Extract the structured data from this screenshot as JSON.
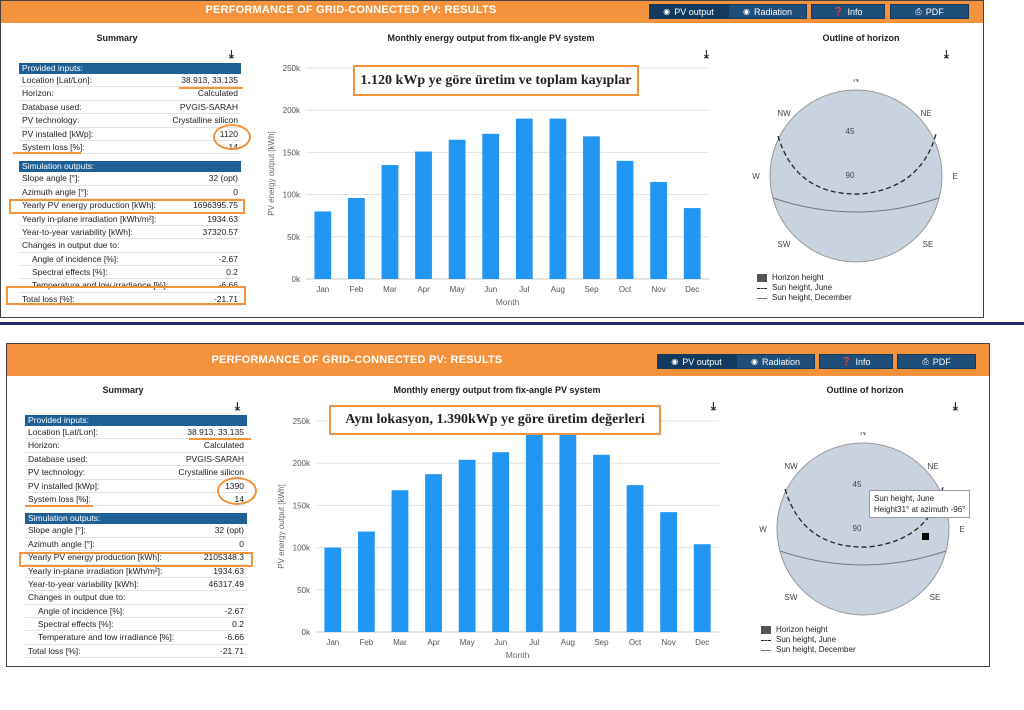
{
  "panel1": {
    "title": "PERFORMANCE OF GRID-CONNECTED PV: RESULTS",
    "buttons": {
      "pv": "PV output",
      "radiation": "Radiation",
      "info": "Info",
      "pdf": "PDF"
    },
    "summary_title": "Summary",
    "chart_title": "Monthly energy output from fix-angle PV system",
    "horizon_title": "Outline of horizon",
    "annotation": "1.120 kWp ye göre üretim ve toplam kayıplar",
    "provided_inputs": "Provided inputs:",
    "inputs": [
      {
        "label": "Location [Lat/Lon]:",
        "value": "38.913, 33.135"
      },
      {
        "label": "Horizon:",
        "value": "Calculated"
      },
      {
        "label": "Database used:",
        "value": "PVGIS-SARAH"
      },
      {
        "label": "PV technology:",
        "value": "Crystalline silicon"
      },
      {
        "label": "PV installed [kWp]:",
        "value": "1120"
      },
      {
        "label": "System loss [%]:",
        "value": "14"
      }
    ],
    "simulation_outputs": "Simulation outputs:",
    "outputs": [
      {
        "label": "Slope angle [°]:",
        "value": "32 (opt)"
      },
      {
        "label": "Azimuth angle [°]:",
        "value": "0"
      },
      {
        "label": "Yearly PV energy production [kWh]:",
        "value": "1696395.75"
      },
      {
        "label": "Yearly in-plane irradiation [kWh/m²]:",
        "value": "1934.63"
      },
      {
        "label": "Year-to-year variability [kWh]:",
        "value": "37320.57"
      },
      {
        "label": "Changes in output due to:",
        "value": ""
      },
      {
        "label": "Angle of incidence [%]:",
        "value": "-2.67"
      },
      {
        "label": "Spectral effects [%]:",
        "value": "0.2"
      },
      {
        "label": "Temperature and low irradiance [%]:",
        "value": "-6.66"
      },
      {
        "label": "Total loss [%]:",
        "value": "-21.71"
      }
    ],
    "horizon": {
      "N": "N",
      "NE": "NE",
      "E": "E",
      "SE": "SE",
      "S": "S",
      "SW": "SW",
      "W": "W",
      "NW": "NW",
      "r45": "45",
      "r90": "90"
    },
    "legend": [
      "Horizon height",
      "Sun height, June",
      "Sun height, December"
    ]
  },
  "panel2": {
    "title": "PERFORMANCE OF GRID-CONNECTED PV: RESULTS",
    "buttons": {
      "pv": "PV output",
      "radiation": "Radiation",
      "info": "Info",
      "pdf": "PDF"
    },
    "summary_title": "Summary",
    "chart_title": "Monthly energy output from fix-angle PV system",
    "horizon_title": "Outline of horizon",
    "annotation": "Aynı lokasyon, 1.390kWp ye göre üretim değerleri",
    "provided_inputs": "Provided inputs:",
    "inputs": [
      {
        "label": "Location [Lat/Lon]:",
        "value": "38.913, 33.135"
      },
      {
        "label": "Horizon:",
        "value": "Calculated"
      },
      {
        "label": "Database used:",
        "value": "PVGIS-SARAH"
      },
      {
        "label": "PV technology:",
        "value": "Crystalline silicon"
      },
      {
        "label": "PV installed [kWp]:",
        "value": "1390"
      },
      {
        "label": "System loss [%]:",
        "value": "14"
      }
    ],
    "simulation_outputs": "Simulation outputs:",
    "outputs": [
      {
        "label": "Slope angle [°]:",
        "value": "32 (opt)"
      },
      {
        "label": "Azimuth angle [°]:",
        "value": "0"
      },
      {
        "label": "Yearly PV energy production [kWh]:",
        "value": "2105348.3"
      },
      {
        "label": "Yearly in-plane irradiation [kWh/m²]:",
        "value": "1934.63"
      },
      {
        "label": "Year-to-year variability [kWh]:",
        "value": "46317.49"
      },
      {
        "label": "Changes in output due to:",
        "value": ""
      },
      {
        "label": "Angle of incidence [%]:",
        "value": "-2.67"
      },
      {
        "label": "Spectral effects [%]:",
        "value": "0.2"
      },
      {
        "label": "Temperature and low irradiance [%]:",
        "value": "-6.66"
      },
      {
        "label": "Total loss [%]:",
        "value": "-21.71"
      }
    ],
    "horizon": {
      "N": "N",
      "NE": "NE",
      "E": "E",
      "SE": "SE",
      "S": "S",
      "SW": "SW",
      "W": "W",
      "NW": "NW",
      "r45": "45",
      "r90": "90"
    },
    "legend": [
      "Horizon height",
      "Sun height, June",
      "Sun height, December"
    ],
    "tooltip_line1": "Sun height, June",
    "tooltip_line2": "Height31° at azimuth -96°"
  },
  "colors": {
    "header": "#f5923e",
    "button": "#1e4e7a",
    "bar": "#2196f3",
    "highlight": "#f5923e",
    "divider": "#26296e",
    "sky": "#c9d3e0"
  },
  "chart_data": [
    {
      "type": "bar",
      "title": "Monthly energy output from fix-angle PV system",
      "xlabel": "Month",
      "ylabel": "PV energy output [kWh]",
      "categories": [
        "Jan",
        "Feb",
        "Mar",
        "Apr",
        "May",
        "Jun",
        "Jul",
        "Aug",
        "Sep",
        "Oct",
        "Nov",
        "Dec"
      ],
      "values": [
        80000,
        96000,
        135000,
        151000,
        165000,
        172000,
        190000,
        190000,
        169000,
        140000,
        115000,
        84000
      ],
      "yticks": [
        "0k",
        "50k",
        "100k",
        "150k",
        "200k",
        "250k"
      ],
      "ylim": [
        0,
        250000
      ],
      "grid": true
    },
    {
      "type": "bar",
      "title": "Monthly energy output from fix-angle PV system",
      "xlabel": "Month",
      "ylabel": "PV energy output [kWh]",
      "categories": [
        "Jan",
        "Feb",
        "Mar",
        "Apr",
        "May",
        "Jun",
        "Jul",
        "Aug",
        "Sep",
        "Oct",
        "Nov",
        "Dec"
      ],
      "values": [
        100000,
        119000,
        168000,
        187000,
        204000,
        213000,
        236000,
        236000,
        210000,
        174000,
        142000,
        104000
      ],
      "yticks": [
        "0k",
        "50k",
        "100k",
        "150k",
        "200k",
        "250k"
      ],
      "ylim": [
        0,
        250000
      ],
      "grid": true
    }
  ]
}
